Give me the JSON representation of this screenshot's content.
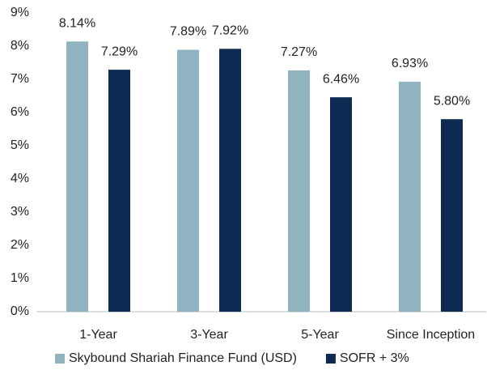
{
  "chart_data": {
    "type": "bar",
    "categories": [
      "1-Year",
      "3-Year",
      "5-Year",
      "Since Inception"
    ],
    "series": [
      {
        "name": "Skybound Shariah Finance Fund (USD)",
        "color": "#8fb3bf",
        "values": [
          8.14,
          7.89,
          7.27,
          6.93
        ],
        "value_labels": [
          "8.14%",
          "7.89%",
          "7.27%",
          "6.93%"
        ]
      },
      {
        "name": "SOFR + 3%",
        "color": "#0d2a52",
        "values": [
          7.29,
          7.92,
          6.46,
          5.8
        ],
        "value_labels": [
          "7.29%",
          "7.92%",
          "6.46%",
          "5.80%"
        ]
      }
    ],
    "ylim": [
      0,
      9
    ],
    "yticks": [
      {
        "value": 0,
        "label": "0%"
      },
      {
        "value": 1,
        "label": "1%"
      },
      {
        "value": 2,
        "label": "2%"
      },
      {
        "value": 3,
        "label": "3%"
      },
      {
        "value": 4,
        "label": "4%"
      },
      {
        "value": 5,
        "label": "5%"
      },
      {
        "value": 6,
        "label": "6%"
      },
      {
        "value": 7,
        "label": "7%"
      },
      {
        "value": 8,
        "label": "8%"
      },
      {
        "value": 9,
        "label": "9%"
      }
    ],
    "grid": false,
    "legend": "bottom"
  }
}
